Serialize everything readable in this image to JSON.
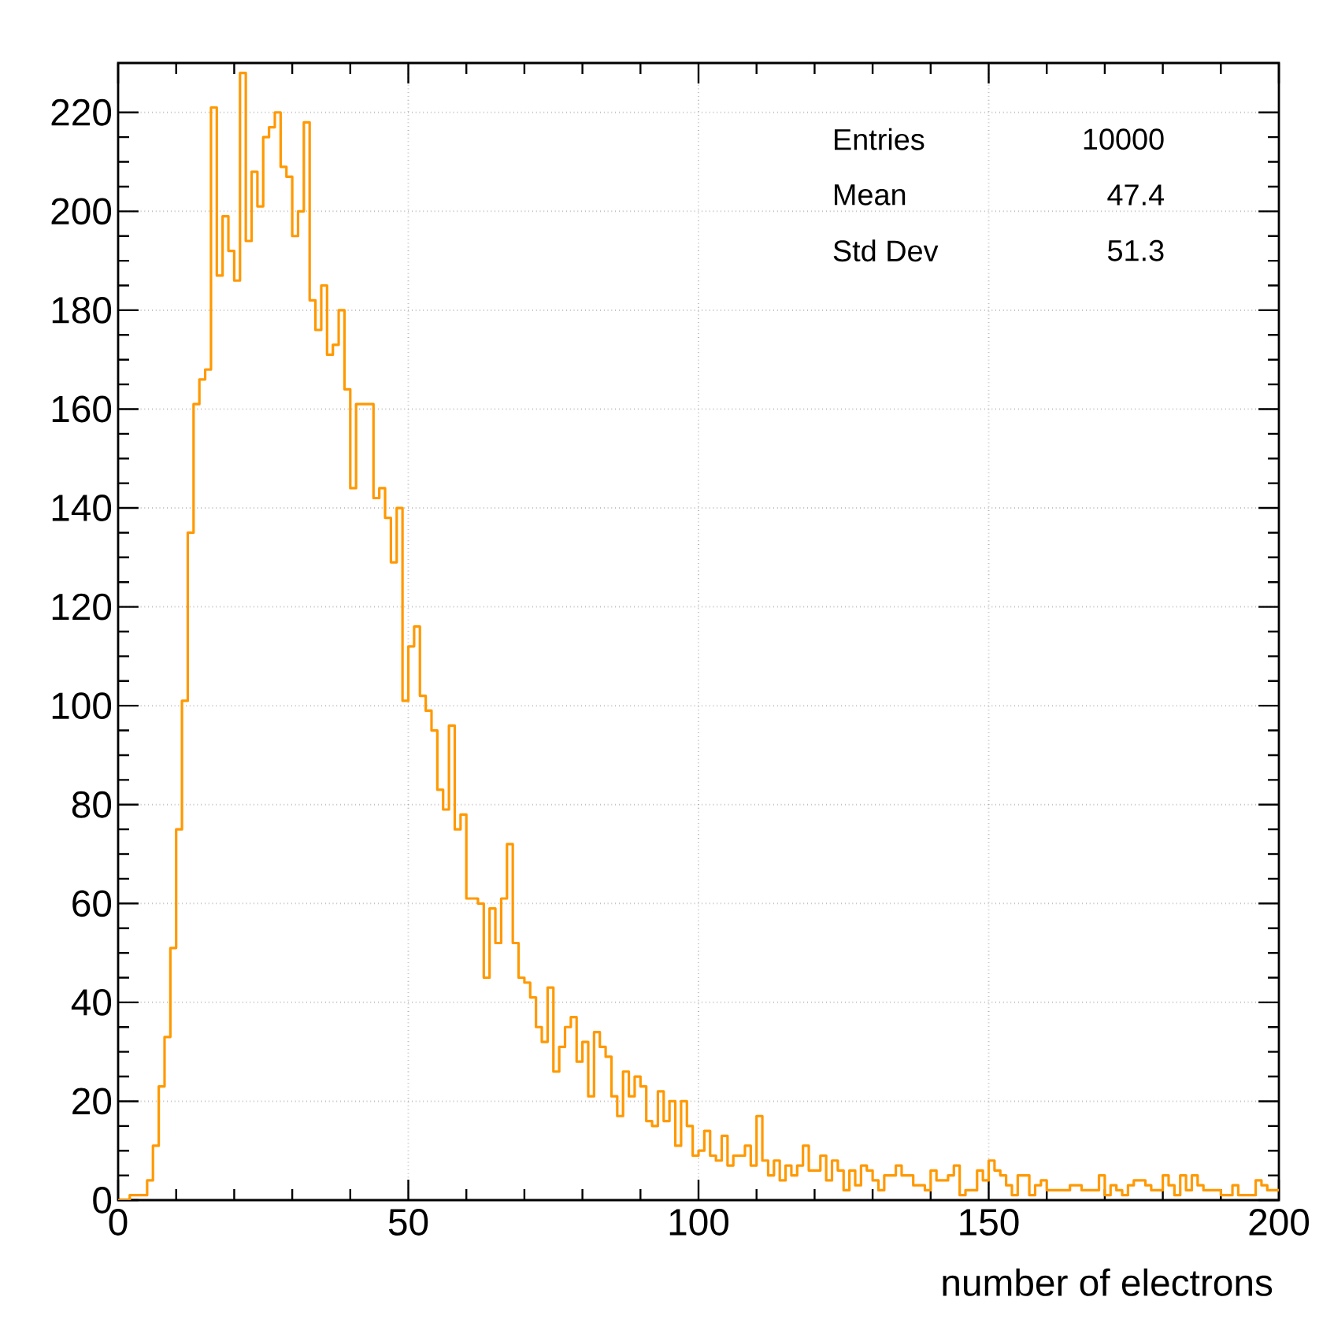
{
  "chart_data": {
    "type": "histogram",
    "xlabel": "number of electrons",
    "bins": [
      0,
      1,
      2,
      3,
      4,
      5,
      6,
      7,
      8,
      9,
      10,
      11,
      12,
      13,
      14,
      15,
      16,
      17,
      18,
      19,
      20,
      21,
      22,
      23,
      24,
      25,
      26,
      27,
      28,
      29,
      30,
      31,
      32,
      33,
      34,
      35,
      36,
      37,
      38,
      39,
      40,
      41,
      42,
      43,
      44,
      45,
      46,
      47,
      48,
      49,
      50,
      51,
      52,
      53,
      54,
      55,
      56,
      57,
      58,
      59,
      60,
      61,
      62,
      63,
      64,
      65,
      66,
      67,
      68,
      69,
      70,
      71,
      72,
      73,
      74,
      75,
      76,
      77,
      78,
      79,
      80,
      81,
      82,
      83,
      84,
      85,
      86,
      87,
      88,
      89,
      90,
      91,
      92,
      93,
      94,
      95,
      96,
      97,
      98,
      99,
      100,
      101,
      102,
      103,
      104,
      105,
      106,
      107,
      108,
      109,
      110,
      111,
      112,
      113,
      114,
      115,
      116,
      117,
      118,
      119,
      120,
      121,
      122,
      123,
      124,
      125,
      126,
      127,
      128,
      129,
      130,
      131,
      132,
      133,
      134,
      135,
      136,
      137,
      138,
      139,
      140,
      141,
      142,
      143,
      144,
      145,
      146,
      147,
      148,
      149,
      150,
      151,
      152,
      153,
      154,
      155,
      156,
      157,
      158,
      159,
      160,
      161,
      162,
      163,
      164,
      165,
      166,
      167,
      168,
      169,
      170,
      171,
      172,
      173,
      174,
      175,
      176,
      177,
      178,
      179,
      180,
      181,
      182,
      183,
      184,
      185,
      186,
      187,
      188,
      189,
      190,
      191,
      192,
      193,
      194,
      195,
      196,
      197,
      198,
      199,
      200
    ],
    "values": [
      0,
      0,
      1,
      1,
      1,
      4,
      11,
      23,
      33,
      51,
      75,
      101,
      135,
      161,
      166,
      168,
      221,
      187,
      199,
      192,
      186,
      228,
      194,
      208,
      201,
      215,
      217,
      220,
      209,
      207,
      195,
      200,
      218,
      182,
      176,
      185,
      171,
      173,
      180,
      164,
      144,
      161,
      161,
      161,
      142,
      144,
      138,
      129,
      140,
      101,
      112,
      116,
      102,
      99,
      95,
      83,
      79,
      96,
      75,
      78,
      61,
      61,
      60,
      45,
      59,
      52,
      61,
      72,
      52,
      45,
      44,
      41,
      35,
      32,
      43,
      26,
      31,
      35,
      37,
      28,
      32,
      21,
      34,
      31,
      29,
      21,
      17,
      26,
      21,
      25,
      23,
      16,
      15,
      22,
      16,
      20,
      11,
      20,
      15,
      9,
      10,
      14,
      9,
      8,
      13,
      7,
      9,
      9,
      11,
      7,
      17,
      8,
      5,
      8,
      4,
      7,
      5,
      7,
      11,
      6,
      6,
      9,
      4,
      8,
      6,
      2,
      6,
      3,
      7,
      6,
      4,
      2,
      5,
      5,
      7,
      5,
      5,
      3,
      3,
      2,
      6,
      4,
      4,
      5,
      7,
      1,
      2,
      2,
      6,
      4,
      8,
      6,
      5,
      3,
      1,
      5,
      5,
      1,
      3,
      4,
      2,
      2,
      2,
      2,
      3,
      3,
      2,
      2,
      2,
      5,
      1,
      3,
      2,
      1,
      3,
      4,
      4,
      3,
      2,
      2,
      5,
      3,
      1,
      5,
      2,
      5,
      3,
      2,
      2,
      2,
      1,
      1,
      3,
      1,
      1,
      1,
      4,
      3,
      2,
      2
    ],
    "color": "#ff9900",
    "xlim": [
      0,
      200
    ],
    "ylim": [
      0,
      230
    ],
    "xticks": [
      0,
      50,
      100,
      150,
      200
    ],
    "yticks": [
      0,
      20,
      40,
      60,
      80,
      100,
      120,
      140,
      160,
      180,
      200,
      220
    ],
    "grid": true,
    "annotations": [
      "Entries",
      "10000",
      "Mean",
      "47.4",
      "Std Dev",
      "51.3"
    ]
  }
}
